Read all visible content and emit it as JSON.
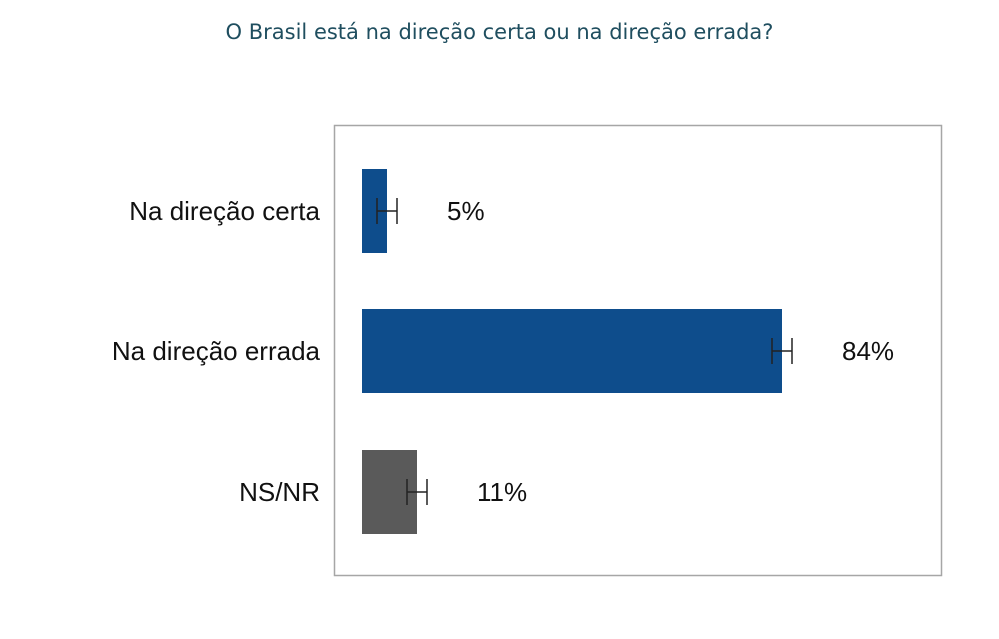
{
  "chart_data": {
    "type": "bar",
    "orientation": "horizontal",
    "title": "O Brasil está na direção certa ou na direção errada?",
    "categories": [
      "Na direção certa",
      "Na direção errada",
      "NS/NR"
    ],
    "values": [
      5,
      84,
      11
    ],
    "value_labels": [
      "5%",
      "84%",
      "11%"
    ],
    "error_margin": [
      2,
      2,
      2
    ],
    "colors": [
      "#0e4d8c",
      "#0e4d8c",
      "#5a5a5a"
    ],
    "xlim": [
      0,
      100
    ],
    "grid": false,
    "legend": "none"
  }
}
